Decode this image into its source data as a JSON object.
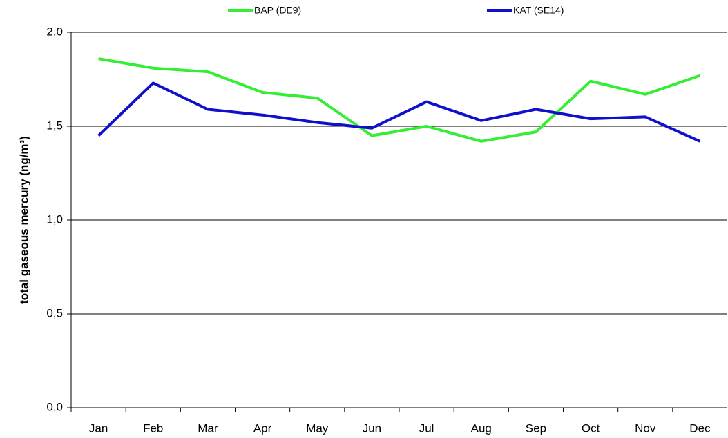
{
  "chart_data": {
    "type": "line",
    "y_label": "total gaseous mercury (ng/m³)",
    "categories": [
      "Jan",
      "Feb",
      "Mar",
      "Apr",
      "May",
      "Jun",
      "Jul",
      "Aug",
      "Sep",
      "Oct",
      "Nov",
      "Dec"
    ],
    "series": [
      {
        "name": "BAP (DE9)",
        "color": "#33ee33",
        "values": [
          1.86,
          1.81,
          1.79,
          1.68,
          1.65,
          1.45,
          1.5,
          1.42,
          1.47,
          1.74,
          1.67,
          1.77
        ]
      },
      {
        "name": "KAT (SE14)",
        "color": "#1010cc",
        "values": [
          1.45,
          1.73,
          1.59,
          1.56,
          1.52,
          1.49,
          1.63,
          1.53,
          1.59,
          1.54,
          1.55,
          1.42
        ]
      }
    ],
    "ylim": [
      0,
      2
    ],
    "yticks": [
      {
        "value": 0,
        "label": "0,0"
      },
      {
        "value": 0.5,
        "label": "0,5"
      },
      {
        "value": 1,
        "label": "1,0"
      },
      {
        "value": 1.5,
        "label": "1,5"
      },
      {
        "value": 2,
        "label": "2,0"
      }
    ],
    "grid": true
  }
}
